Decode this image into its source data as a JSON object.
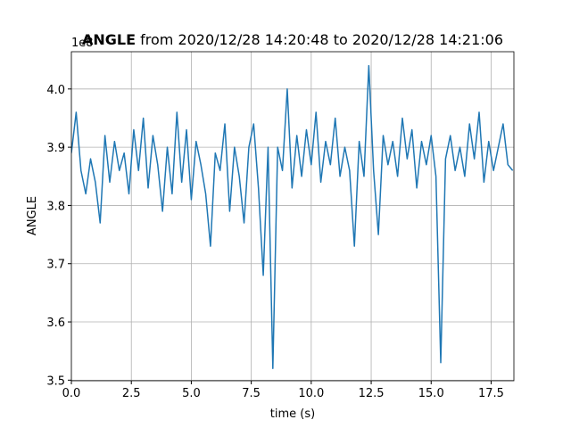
{
  "chart_data": {
    "type": "line",
    "title_bold": "ANGLE",
    "title": " from 2020/12/28 14:20:48 to 2020/12/28 14:21:06",
    "x_label": "time (s)",
    "y_label": "ANGLE",
    "y_offset_text": "1e8",
    "grid": true,
    "xlim": [
      0,
      18.45
    ],
    "ylim": [
      3.499,
      4.064
    ],
    "xticks": [
      {
        "value": 0,
        "label": "0.0"
      },
      2.5,
      {
        "value": 5,
        "label": "5.0"
      },
      7.5,
      {
        "value": 10,
        "label": "10.0"
      },
      12.5,
      {
        "value": 15,
        "label": "15.0"
      },
      17.5
    ],
    "yticks": [
      3.5,
      3.6,
      3.7,
      3.8,
      3.9,
      {
        "value": 4,
        "label": "4.0"
      }
    ],
    "x": [
      0,
      0.2,
      0.4,
      0.6,
      0.8,
      1,
      1.2,
      1.4,
      1.6,
      1.8,
      2,
      2.2,
      2.4,
      2.6,
      2.8,
      3,
      3.2,
      3.4,
      3.6,
      3.8,
      4,
      4.2,
      4.4,
      4.6,
      4.8,
      5,
      5.2,
      5.4,
      5.6,
      5.8,
      6,
      6.2,
      6.4,
      6.6,
      6.8,
      7,
      7.2,
      7.4,
      7.6,
      7.8,
      8,
      8.2,
      8.4,
      8.6,
      8.8,
      9,
      9.2,
      9.4,
      9.6,
      9.8,
      10,
      10.2,
      10.4,
      10.6,
      10.8,
      11,
      11.2,
      11.4,
      11.6,
      11.8,
      12,
      12.2,
      12.4,
      12.6,
      12.8,
      13,
      13.2,
      13.4,
      13.6,
      13.8,
      14,
      14.2,
      14.4,
      14.6,
      14.8,
      15,
      15.2,
      15.4,
      15.6,
      15.8,
      16,
      16.2,
      16.4,
      16.6,
      16.8,
      17,
      17.2,
      17.4,
      17.6,
      17.8,
      18,
      18.2,
      18.4
    ],
    "series": [
      {
        "color": "#1f77b4",
        "values": [
          3.89,
          3.96,
          3.86,
          3.82,
          3.88,
          3.84,
          3.77,
          3.92,
          3.84,
          3.91,
          3.86,
          3.89,
          3.82,
          3.93,
          3.86,
          3.95,
          3.83,
          3.92,
          3.87,
          3.79,
          3.9,
          3.82,
          3.96,
          3.84,
          3.93,
          3.81,
          3.91,
          3.87,
          3.82,
          3.73,
          3.89,
          3.86,
          3.94,
          3.79,
          3.9,
          3.85,
          3.77,
          3.9,
          3.94,
          3.83,
          3.68,
          3.9,
          3.52,
          3.9,
          3.86,
          4.0,
          3.83,
          3.92,
          3.85,
          3.93,
          3.87,
          3.96,
          3.84,
          3.91,
          3.87,
          3.95,
          3.85,
          3.9,
          3.86,
          3.73,
          3.91,
          3.85,
          4.04,
          3.86,
          3.75,
          3.92,
          3.87,
          3.91,
          3.85,
          3.95,
          3.88,
          3.93,
          3.83,
          3.91,
          3.87,
          3.92,
          3.85,
          3.53,
          3.88,
          3.92,
          3.86,
          3.9,
          3.85,
          3.94,
          3.88,
          3.96,
          3.84,
          3.91,
          3.86,
          3.9,
          3.94,
          3.87,
          3.86
        ]
      }
    ]
  }
}
